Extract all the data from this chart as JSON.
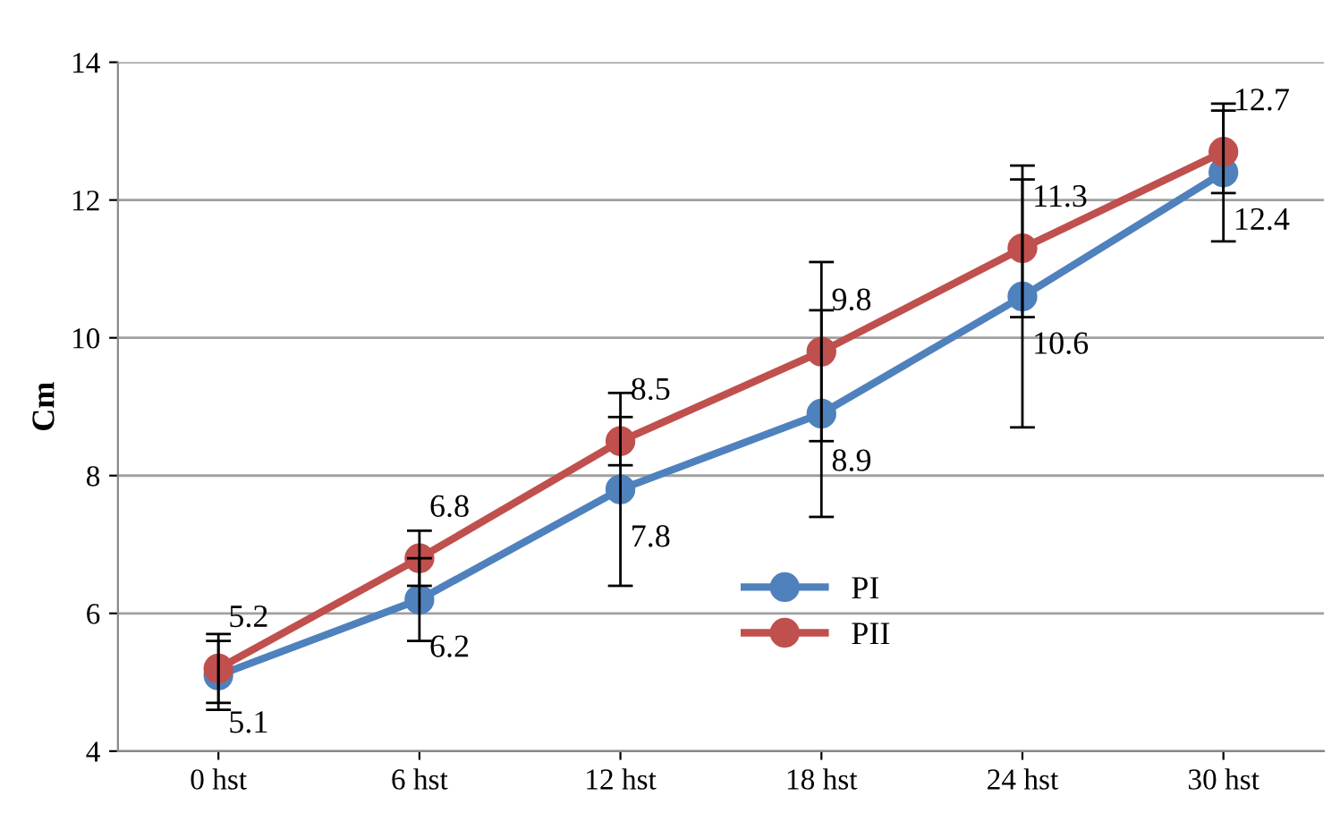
{
  "chart_data": {
    "type": "line",
    "ylabel": "Cm",
    "categories": [
      "0 hst",
      "6 hst",
      "12 hst",
      "18 hst",
      "24 hst",
      "30 hst"
    ],
    "series": [
      {
        "name": "PI",
        "color": "#4f81bd",
        "values": [
          5.1,
          6.2,
          7.8,
          8.9,
          10.6,
          12.4
        ],
        "errors": [
          0.5,
          0.6,
          1.4,
          1.5,
          1.9,
          1.0
        ]
      },
      {
        "name": "PII",
        "color": "#c0504d",
        "values": [
          5.2,
          6.8,
          8.5,
          9.8,
          11.3,
          12.7
        ],
        "errors": [
          0.5,
          0.4,
          0.35,
          1.3,
          1.0,
          0.6
        ]
      }
    ],
    "ylim": [
      4,
      14
    ],
    "yticks": [
      4,
      6,
      8,
      10,
      12,
      14
    ],
    "grid": "y",
    "legend": "bottom",
    "marker": "circle",
    "line_style": "solid",
    "data_labels": true
  }
}
